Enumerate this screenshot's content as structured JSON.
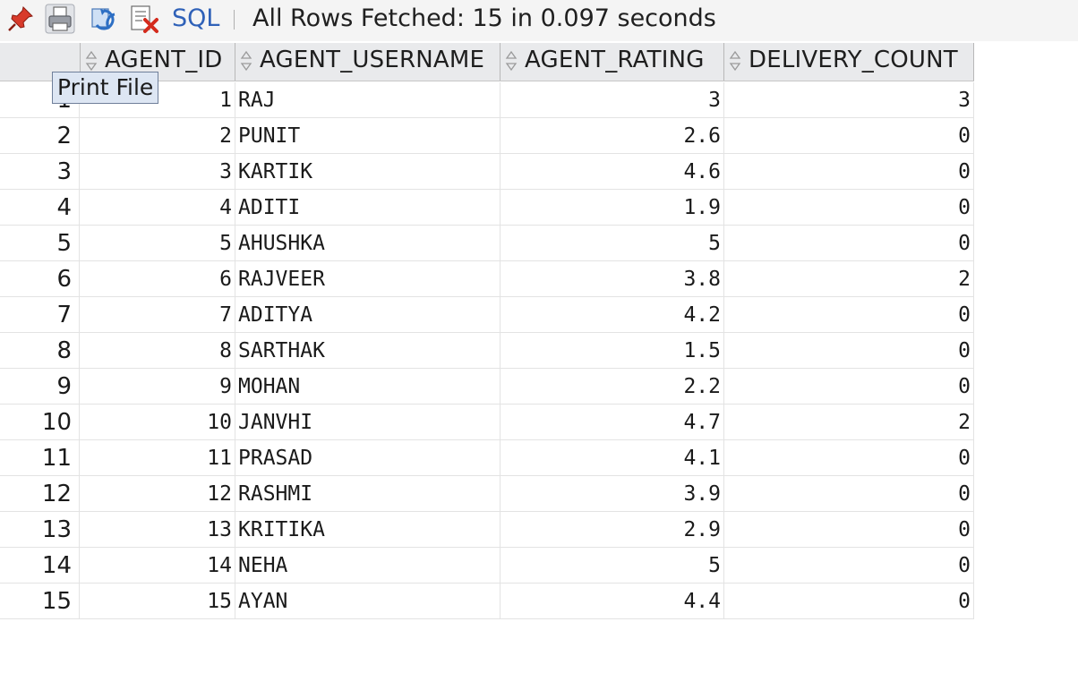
{
  "toolbar": {
    "icons": [
      "pin-icon",
      "print-icon",
      "refresh-icon",
      "export-icon"
    ],
    "sql_label": "SQL",
    "status": "All Rows Fetched: 15 in 0.097 seconds"
  },
  "tooltip": {
    "text": "Print File"
  },
  "grid": {
    "columns": [
      "AGENT_ID",
      "AGENT_USERNAME",
      "AGENT_RATING",
      "DELIVERY_COUNT"
    ],
    "rows": [
      {
        "num": "1",
        "id": "1",
        "username": "RAJ",
        "rating": "3",
        "count": "3"
      },
      {
        "num": "2",
        "id": "2",
        "username": "PUNIT",
        "rating": "2.6",
        "count": "0"
      },
      {
        "num": "3",
        "id": "3",
        "username": "KARTIK",
        "rating": "4.6",
        "count": "0"
      },
      {
        "num": "4",
        "id": "4",
        "username": "ADITI",
        "rating": "1.9",
        "count": "0"
      },
      {
        "num": "5",
        "id": "5",
        "username": "AHUSHKA",
        "rating": "5",
        "count": "0"
      },
      {
        "num": "6",
        "id": "6",
        "username": "RAJVEER",
        "rating": "3.8",
        "count": "2"
      },
      {
        "num": "7",
        "id": "7",
        "username": "ADITYA",
        "rating": "4.2",
        "count": "0"
      },
      {
        "num": "8",
        "id": "8",
        "username": "SARTHAK",
        "rating": "1.5",
        "count": "0"
      },
      {
        "num": "9",
        "id": "9",
        "username": "MOHAN",
        "rating": "2.2",
        "count": "0"
      },
      {
        "num": "10",
        "id": "10",
        "username": "JANVHI",
        "rating": "4.7",
        "count": "2"
      },
      {
        "num": "11",
        "id": "11",
        "username": "PRASAD",
        "rating": "4.1",
        "count": "0"
      },
      {
        "num": "12",
        "id": "12",
        "username": "RASHMI",
        "rating": "3.9",
        "count": "0"
      },
      {
        "num": "13",
        "id": "13",
        "username": "KRITIKA",
        "rating": "2.9",
        "count": "0"
      },
      {
        "num": "14",
        "id": "14",
        "username": "NEHA",
        "rating": "5",
        "count": "0"
      },
      {
        "num": "15",
        "id": "15",
        "username": "AYAN",
        "rating": "4.4",
        "count": "0"
      }
    ]
  }
}
